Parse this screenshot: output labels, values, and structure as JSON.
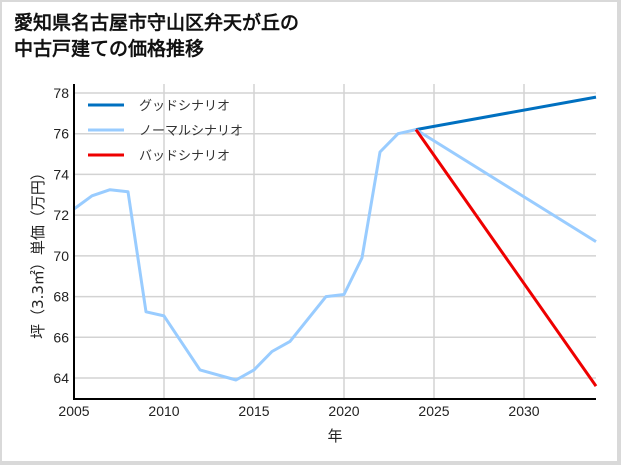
{
  "title_line1": "愛知県名古屋市守山区弁天が丘の",
  "title_line2": "中古戸建ての価格推移",
  "chart_data": {
    "type": "line",
    "title": "愛知県名古屋市守山区弁天が丘の中古戸建ての価格推移",
    "xlabel": "年",
    "ylabel": "坪（3.3㎡）単価（万円）",
    "xlim": [
      2005,
      2034
    ],
    "ylim": [
      63,
      78.5
    ],
    "x_ticks": [
      2005,
      2010,
      2015,
      2020,
      2025,
      2030
    ],
    "y_ticks": [
      64,
      66,
      68,
      70,
      72,
      74,
      76,
      78
    ],
    "grid": true,
    "legend_position": "upper left",
    "legend": [
      "グッドシナリオ",
      "ノーマルシナリオ",
      "バッドシナリオ"
    ],
    "series": [
      {
        "name": "ノーマルシナリオ (historical)",
        "color": "#99ccff",
        "x": [
          2005,
          2006,
          2007,
          2008,
          2009,
          2010,
          2012,
          2014,
          2015,
          2016,
          2017,
          2019,
          2020,
          2021,
          2022,
          2023,
          2024
        ],
        "y": [
          72.3,
          72.95,
          73.25,
          73.15,
          67.25,
          67.05,
          64.4,
          63.9,
          64.4,
          65.3,
          65.8,
          68.0,
          68.1,
          69.9,
          75.1,
          76.0,
          76.2
        ]
      },
      {
        "name": "グッドシナリオ",
        "color": "#0070c0",
        "x": [
          2024,
          2034
        ],
        "y": [
          76.2,
          77.8
        ]
      },
      {
        "name": "ノーマルシナリオ",
        "color": "#99ccff",
        "x": [
          2024,
          2034
        ],
        "y": [
          76.2,
          70.7
        ]
      },
      {
        "name": "バッドシナリオ",
        "color": "#ee0000",
        "x": [
          2024,
          2034
        ],
        "y": [
          76.2,
          63.6
        ]
      }
    ]
  }
}
